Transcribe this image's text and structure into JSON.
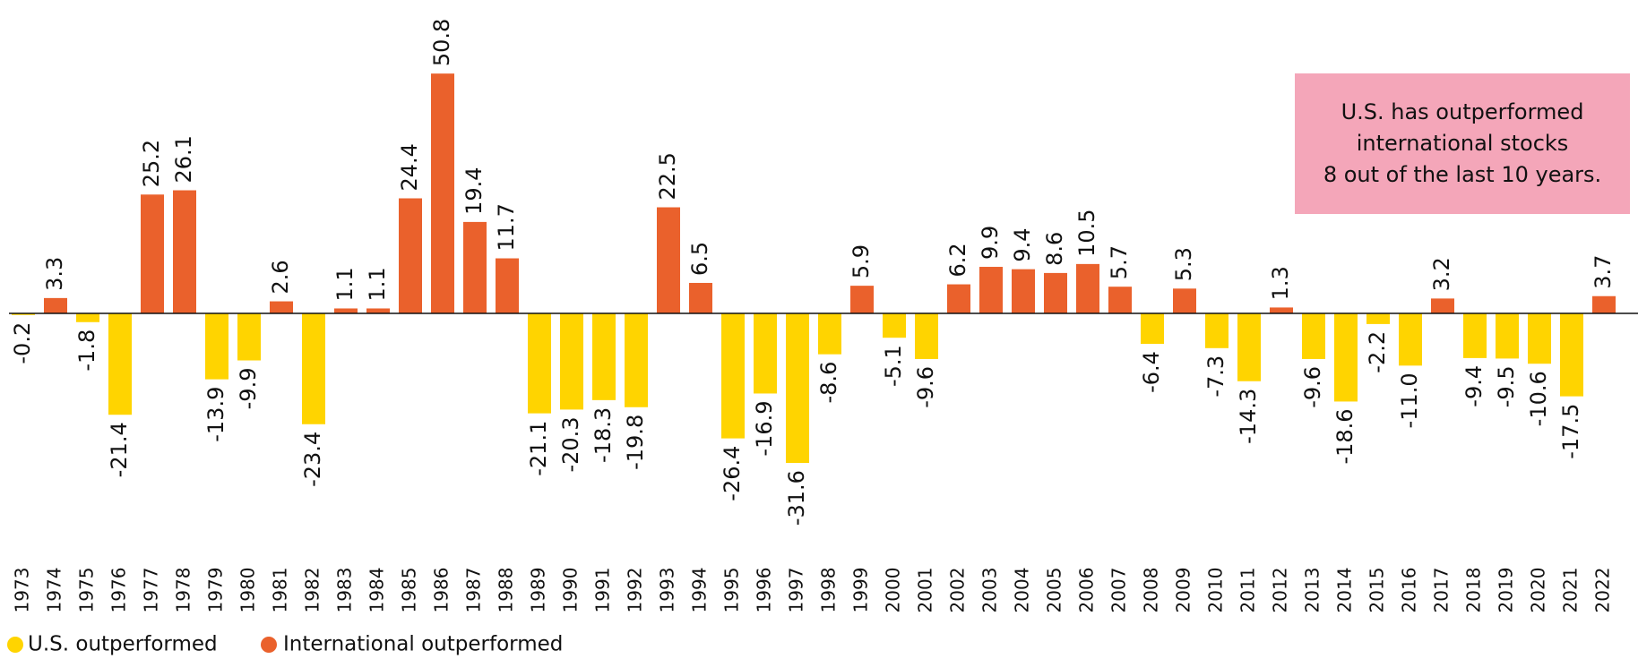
{
  "chart_data": {
    "type": "bar",
    "categories": [
      "1973",
      "1974",
      "1975",
      "1976",
      "1977",
      "1978",
      "1979",
      "1980",
      "1981",
      "1982",
      "1983",
      "1984",
      "1985",
      "1986",
      "1987",
      "1988",
      "1989",
      "1990",
      "1991",
      "1992",
      "1993",
      "1994",
      "1995",
      "1996",
      "1997",
      "1998",
      "1999",
      "2000",
      "2001",
      "2002",
      "2003",
      "2004",
      "2005",
      "2006",
      "2007",
      "2008",
      "2009",
      "2010",
      "2011",
      "2012",
      "2013",
      "2014",
      "2015",
      "2016",
      "2017",
      "2018",
      "2019",
      "2020",
      "2021",
      "2022"
    ],
    "series": [
      {
        "name": "U.S. outperformed",
        "color": "#FFD400",
        "values": [
          -0.2,
          null,
          -1.8,
          -21.4,
          null,
          null,
          -13.9,
          -9.9,
          null,
          -23.4,
          null,
          null,
          null,
          null,
          null,
          null,
          -21.1,
          -20.3,
          -18.3,
          -19.8,
          null,
          null,
          -26.4,
          -16.9,
          -31.6,
          -8.6,
          null,
          -5.1,
          -9.6,
          null,
          null,
          null,
          null,
          null,
          null,
          -6.4,
          null,
          -7.3,
          -14.3,
          null,
          -9.6,
          -18.6,
          -2.2,
          -11,
          null,
          -9.4,
          -9.5,
          -10.6,
          -17.5,
          null
        ],
        "value_labels": [
          "-0.2",
          null,
          "-1.8",
          "-21.4",
          null,
          null,
          "-13.9",
          "-9.9",
          null,
          "-23.4",
          null,
          null,
          null,
          null,
          null,
          null,
          "-21.1",
          "-20.3",
          "-18.3",
          "-19.8",
          null,
          null,
          "-26.4",
          "-16.9",
          "-31.6",
          "-8.6",
          null,
          "-5.1",
          "-9.6",
          null,
          null,
          null,
          null,
          null,
          null,
          "-6.4",
          null,
          "-7.3",
          "-14.3",
          null,
          "-9.6",
          "-18.6",
          "-2.2",
          "-11.0",
          null,
          "-9.4",
          "-9.5",
          "-10.6",
          "-17.5",
          null
        ]
      },
      {
        "name": "International outperformed",
        "color": "#EA612C",
        "values": [
          null,
          3.3,
          null,
          null,
          25.2,
          26.1,
          null,
          null,
          2.6,
          null,
          1.1,
          1.1,
          24.4,
          50.8,
          19.4,
          11.7,
          null,
          null,
          null,
          null,
          22.5,
          6.5,
          null,
          null,
          null,
          null,
          5.9,
          null,
          null,
          6.2,
          9.9,
          9.4,
          8.6,
          10.5,
          5.7,
          null,
          5.3,
          null,
          null,
          1.3,
          null,
          null,
          null,
          null,
          3.2,
          null,
          null,
          null,
          null,
          3.7
        ],
        "value_labels": [
          null,
          "3.3",
          null,
          null,
          "25.2",
          "26.1",
          null,
          null,
          "2.6",
          null,
          "1.1",
          "1.1",
          "24.4",
          "50.8",
          "19.4",
          "11.7",
          null,
          null,
          null,
          null,
          "22.5",
          "6.5",
          null,
          null,
          null,
          null,
          "5.9",
          null,
          null,
          "6.2",
          "9.9",
          "9.4",
          "8.6",
          "10.5",
          "5.7",
          null,
          "5.3",
          null,
          null,
          "1.3",
          null,
          null,
          null,
          null,
          "3.2",
          null,
          null,
          null,
          null,
          "3.7"
        ]
      }
    ],
    "ylim": [
      -35,
      55
    ],
    "annotation": [
      "U.S. has outperformed",
      "international stocks",
      "8 out of the last 10 years."
    ]
  }
}
